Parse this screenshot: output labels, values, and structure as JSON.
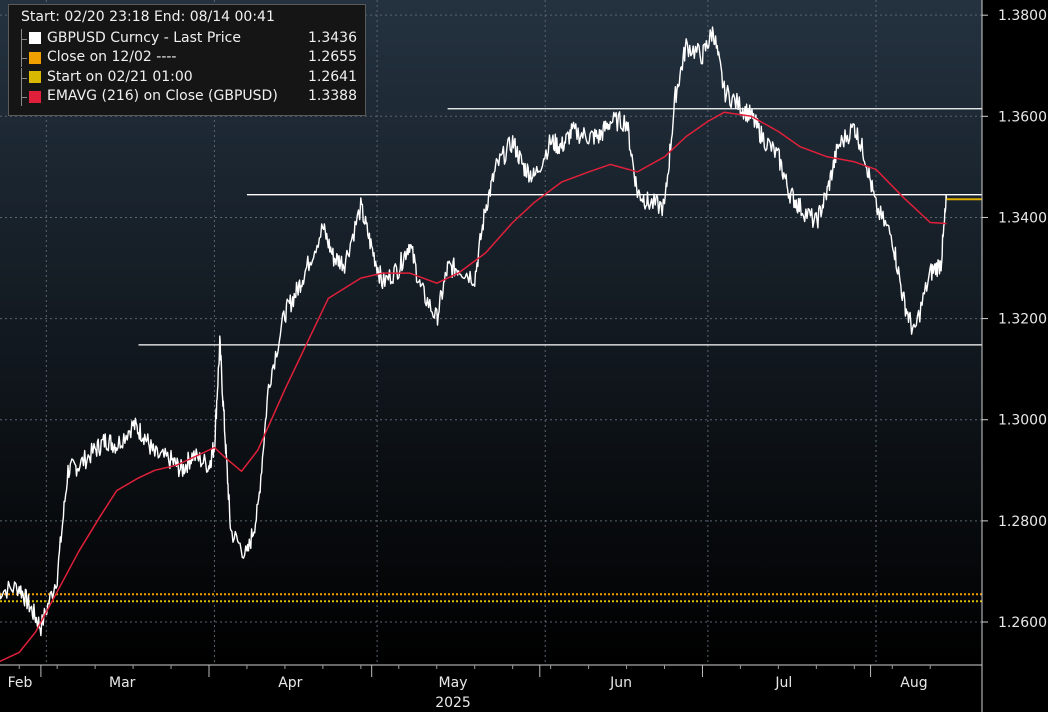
{
  "legend": {
    "header": "Start: 02/20 23:18 End: 08/14 00:41",
    "items": [
      {
        "label": "GBPUSD Curncy - Last Price",
        "value": "1.3436",
        "color": "#ffffff"
      },
      {
        "label": "Close on 12/02 ----",
        "value": "1.2655",
        "color": "#f0a000"
      },
      {
        "label": "Start on 02/21 01:00",
        "value": "1.2641",
        "color": "#d8b800"
      },
      {
        "label": "EMAVG (216)  on Close (GBPUSD)",
        "value": "1.3388",
        "color": "#e0203a"
      }
    ]
  },
  "chart_data": {
    "type": "line",
    "title": "",
    "xlabel": "",
    "ylabel": "",
    "ylim": [
      1.2515,
      1.383
    ],
    "y_ticks": [
      "1.2600",
      "1.2800",
      "1.3000",
      "1.3200",
      "1.3400",
      "1.3600",
      "1.3800"
    ],
    "x_ticks": [
      "Feb",
      "Mar",
      "Apr",
      "May",
      "Jun",
      "Jul",
      "Aug"
    ],
    "x_sublabel": "2025",
    "grid": true,
    "series": [
      {
        "name": "GBPUSD Curncy - Last Price",
        "color": "#ffffff",
        "x": [
          "2025-02-20",
          "2025-02-24",
          "2025-02-26",
          "2025-02-28",
          "2025-03-03",
          "2025-03-05",
          "2025-03-07",
          "2025-03-10",
          "2025-03-12",
          "2025-03-14",
          "2025-03-17",
          "2025-03-19",
          "2025-03-21",
          "2025-03-24",
          "2025-03-26",
          "2025-03-28",
          "2025-03-31",
          "2025-04-01",
          "2025-04-02",
          "2025-04-03",
          "2025-04-04",
          "2025-04-07",
          "2025-04-09",
          "2025-04-11",
          "2025-04-14",
          "2025-04-16",
          "2025-04-18",
          "2025-04-21",
          "2025-04-23",
          "2025-04-25",
          "2025-04-28",
          "2025-04-30",
          "2025-05-02",
          "2025-05-05",
          "2025-05-07",
          "2025-05-09",
          "2025-05-12",
          "2025-05-14",
          "2025-05-16",
          "2025-05-19",
          "2025-05-21",
          "2025-05-23",
          "2025-05-26",
          "2025-05-28",
          "2025-05-30",
          "2025-06-02",
          "2025-06-04",
          "2025-06-06",
          "2025-06-09",
          "2025-06-11",
          "2025-06-13",
          "2025-06-16",
          "2025-06-18",
          "2025-06-20",
          "2025-06-23",
          "2025-06-25",
          "2025-06-27",
          "2025-06-30",
          "2025-07-02",
          "2025-07-04",
          "2025-07-07",
          "2025-07-09",
          "2025-07-11",
          "2025-07-14",
          "2025-07-16",
          "2025-07-18",
          "2025-07-21",
          "2025-07-23",
          "2025-07-25",
          "2025-07-28",
          "2025-07-30",
          "2025-08-01",
          "2025-08-04",
          "2025-08-06",
          "2025-08-08",
          "2025-08-11",
          "2025-08-13",
          "2025-08-14"
        ],
        "values": [
          1.266,
          1.267,
          1.263,
          1.259,
          1.269,
          1.29,
          1.291,
          1.294,
          1.296,
          1.295,
          1.299,
          1.297,
          1.293,
          1.292,
          1.29,
          1.293,
          1.291,
          1.295,
          1.315,
          1.296,
          1.278,
          1.273,
          1.282,
          1.307,
          1.321,
          1.325,
          1.33,
          1.338,
          1.332,
          1.331,
          1.342,
          1.334,
          1.327,
          1.33,
          1.335,
          1.326,
          1.32,
          1.33,
          1.33,
          1.328,
          1.342,
          1.35,
          1.355,
          1.35,
          1.348,
          1.355,
          1.354,
          1.357,
          1.356,
          1.356,
          1.359,
          1.359,
          1.345,
          1.343,
          1.342,
          1.364,
          1.374,
          1.372,
          1.377,
          1.365,
          1.362,
          1.36,
          1.356,
          1.352,
          1.345,
          1.342,
          1.339,
          1.345,
          1.354,
          1.358,
          1.352,
          1.342,
          1.336,
          1.324,
          1.317,
          1.329,
          1.331,
          1.3436
        ]
      },
      {
        "name": "EMAVG (216)  on Close (GBPUSD)",
        "color": "#e0203a",
        "x": [
          "2025-02-20",
          "2025-02-24",
          "2025-02-27",
          "2025-03-03",
          "2025-03-07",
          "2025-03-11",
          "2025-03-14",
          "2025-03-18",
          "2025-03-21",
          "2025-03-25",
          "2025-03-28",
          "2025-04-01",
          "2025-04-03",
          "2025-04-06",
          "2025-04-09",
          "2025-04-14",
          "2025-04-18",
          "2025-04-22",
          "2025-04-28",
          "2025-05-02",
          "2025-05-07",
          "2025-05-12",
          "2025-05-16",
          "2025-05-21",
          "2025-05-26",
          "2025-05-30",
          "2025-06-04",
          "2025-06-09",
          "2025-06-13",
          "2025-06-18",
          "2025-06-23",
          "2025-06-27",
          "2025-07-01",
          "2025-07-04",
          "2025-07-09",
          "2025-07-14",
          "2025-07-18",
          "2025-07-23",
          "2025-07-28",
          "2025-08-01",
          "2025-08-06",
          "2025-08-11",
          "2025-08-14"
        ],
        "values": [
          1.252,
          1.254,
          1.258,
          1.266,
          1.274,
          1.281,
          1.286,
          1.2885,
          1.29,
          1.291,
          1.2925,
          1.2945,
          1.2925,
          1.2898,
          1.294,
          1.306,
          1.315,
          1.324,
          1.328,
          1.329,
          1.329,
          1.327,
          1.329,
          1.333,
          1.339,
          1.343,
          1.347,
          1.349,
          1.3505,
          1.349,
          1.352,
          1.356,
          1.359,
          1.3608,
          1.36,
          1.357,
          1.354,
          1.352,
          1.351,
          1.3495,
          1.344,
          1.339,
          1.3388
        ]
      }
    ],
    "reference_lines": [
      {
        "label": "Close on 12/02 ----",
        "value": 1.2655,
        "color": "#f0a000",
        "style": "dotted"
      },
      {
        "label": "Start on 02/21 01:00",
        "value": 1.2641,
        "color": "#d8b800",
        "style": "dotted"
      },
      {
        "value": 1.3615,
        "color": "#ffffff",
        "style": "solid",
        "x_start": "2025-05-14"
      },
      {
        "value": 1.3445,
        "color": "#ffffff",
        "style": "solid",
        "x_start": "2025-04-07"
      },
      {
        "value": 1.3148,
        "color": "#ffffff",
        "style": "solid",
        "x_start": "2025-03-18"
      }
    ],
    "last_value_marker": {
      "value": 1.3436,
      "color": "#e0b000"
    }
  }
}
